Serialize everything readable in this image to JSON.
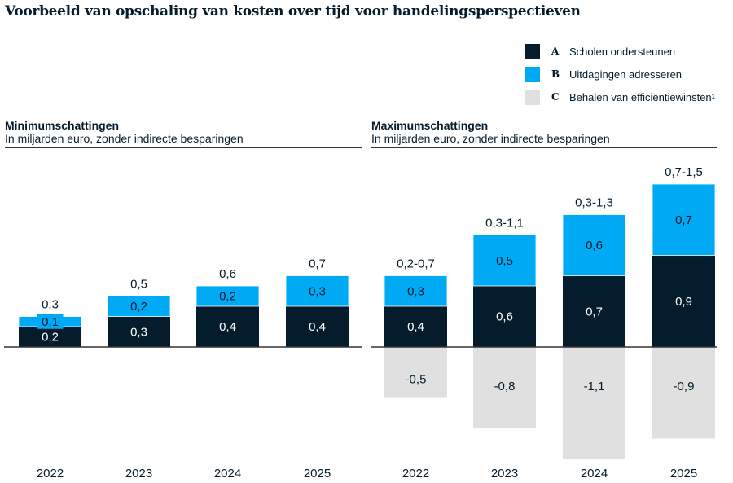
{
  "title": "Voorbeeld van opschaling van kosten over tijd voor handelingsperspectieven",
  "legend": [
    {
      "key": "A",
      "label": "Scholen ondersteunen",
      "color": "#051c2c"
    },
    {
      "key": "B",
      "label": "Uitdagingen adresseren",
      "color": "#00a9f4"
    },
    {
      "key": "C",
      "label": "Behalen van efficiëntiewinsten¹",
      "color": "#e0e0e0"
    }
  ],
  "chart_data": [
    {
      "type": "bar",
      "stacked": true,
      "title": "Minimumschattingen",
      "subtitle": "In miljarden euro, zonder indirecte besparingen",
      "categories": [
        "2022",
        "2023",
        "2024",
        "2025"
      ],
      "series": [
        {
          "name": "Scholen ondersteunen",
          "values": [
            0.2,
            0.3,
            0.4,
            0.4
          ],
          "labels": [
            "0,2",
            "0,3",
            "0,4",
            "0,4"
          ]
        },
        {
          "name": "Uitdagingen adresseren",
          "values": [
            0.1,
            0.2,
            0.2,
            0.3
          ],
          "labels": [
            "0,1",
            "0,2",
            "0,2",
            "0,3"
          ]
        }
      ],
      "totals": [
        "0,3",
        "0,5",
        "0,6",
        "0,7"
      ]
    },
    {
      "type": "bar",
      "stacked": true,
      "title": "Maximumschattingen",
      "subtitle": "In miljarden euro, zonder indirecte besparingen",
      "categories": [
        "2022",
        "2023",
        "2024",
        "2025"
      ],
      "series": [
        {
          "name": "Scholen ondersteunen",
          "values": [
            0.4,
            0.6,
            0.7,
            0.9
          ],
          "labels": [
            "0,4",
            "0,6",
            "0,7",
            "0,9"
          ]
        },
        {
          "name": "Uitdagingen adresseren",
          "values": [
            0.3,
            0.5,
            0.6,
            0.7
          ],
          "labels": [
            "0,3",
            "0,5",
            "0,6",
            "0,7"
          ]
        },
        {
          "name": "Behalen van efficiëntiewinsten",
          "values": [
            -0.5,
            -0.8,
            -1.1,
            -0.9
          ],
          "labels": [
            "-0,5",
            "-0,8",
            "-1,1",
            "-0,9"
          ]
        }
      ],
      "totals": [
        "0,2-0,7",
        "0,3-1,1",
        "0,3-1,3",
        "0,7-1,5"
      ]
    }
  ]
}
